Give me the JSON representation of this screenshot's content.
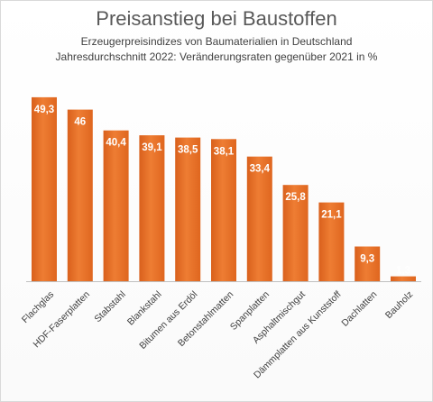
{
  "chart_data": {
    "type": "bar",
    "title": "Preisanstieg bei Baustoffen",
    "subtitle_lines": [
      "Erzeugerpreisindizes von Baumaterialien in Deutschland",
      "Jahresdurchschnitt 2022: Veränderungsraten gegenüber  2021 in %"
    ],
    "categories": [
      "Flachglas",
      "HDF-Faserplatten",
      "Stabstahl",
      "Blankstahl",
      "Bitumen aus Erdöl",
      "Betonstahlmatten",
      "Spanplatten",
      "Asphaltmischgut",
      "Dämmplatten aus Kunststoff",
      "Dachlatten",
      "Bauholz"
    ],
    "values": [
      49.3,
      46,
      40.4,
      39.1,
      38.5,
      38.1,
      33.4,
      25.8,
      21.1,
      9.3,
      1.3
    ],
    "data_labels": [
      "49,3",
      "46",
      "40,4",
      "39,1",
      "38,5",
      "38,1",
      "33,4",
      "25,8",
      "21,1",
      "9,3",
      "1,3"
    ],
    "ylim": [
      0,
      55
    ],
    "bar_color": "#e8732a",
    "label_color": "#ffffff",
    "grid": false,
    "legend": "none"
  }
}
